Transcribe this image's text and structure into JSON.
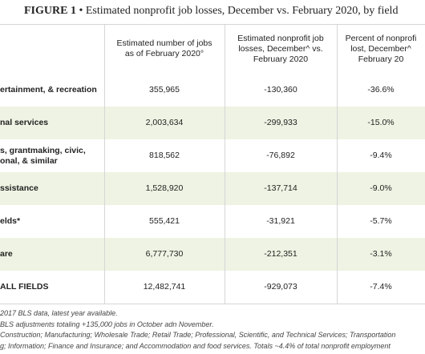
{
  "title": {
    "label": "FIGURE 1",
    "text": "• Estimated nonprofit job losses, December vs. February 2020, by field"
  },
  "table": {
    "header": [
      [
        "Estimated number of jobs",
        "as of February 2020°"
      ],
      [
        "Estimated nonprofit  job",
        "losses, December^ vs.",
        "February 2020"
      ],
      [
        "Percent of nonprofi",
        "lost, December^",
        "February 20"
      ]
    ],
    "rows": [
      [
        [
          "ertainment, & recreation"
        ],
        "355,965",
        "-130,360",
        "-36.6%"
      ],
      [
        [
          "nal services"
        ],
        "2,003,634",
        "-299,933",
        "-15.0%"
      ],
      [
        [
          "s, grantmaking, civic,",
          "onal, & similar"
        ],
        "818,562",
        "-76,892",
        "-9.4%"
      ],
      [
        [
          "ssistance"
        ],
        "1,528,920",
        "-137,714",
        "-9.0%"
      ],
      [
        [
          "elds*"
        ],
        "555,421",
        "-31,921",
        "-5.7%"
      ],
      [
        [
          "are"
        ],
        "6,777,730",
        "-212,351",
        "-3.1%"
      ],
      [
        [
          "ALL FIELDS"
        ],
        "12,482,741",
        "-929,073",
        "-7.4%"
      ]
    ]
  },
  "notes": [
    "2017 BLS data, latest year available.",
    "BLS adjustments totaling +135,000 jobs in October adn November.",
    "Construction; Manufacturing; Wholesale Trade; Retail Trade; Professional, Scientific, and Technical Services; Transportation",
    "g; Information; Finance and Insurance; and Accommodation and food services. Totals ~4.4% of total nonprofit employment"
  ]
}
